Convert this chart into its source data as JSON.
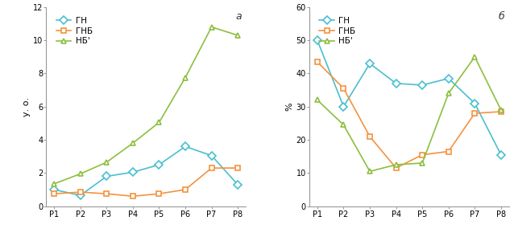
{
  "categories": [
    "P1",
    "P2",
    "P3",
    "P4",
    "P5",
    "P6",
    "P7",
    "P8"
  ],
  "panel_a": {
    "title": "a",
    "ylabel": "у. о.",
    "ylim": [
      0,
      12
    ],
    "yticks": [
      0,
      2,
      4,
      6,
      8,
      10,
      12
    ],
    "GN": [
      1.0,
      0.65,
      1.8,
      2.05,
      2.5,
      3.6,
      3.05,
      1.3
    ],
    "GNB": [
      0.75,
      0.85,
      0.75,
      0.6,
      0.75,
      1.0,
      2.3,
      2.3
    ],
    "NB": [
      1.35,
      1.95,
      2.65,
      3.8,
      5.05,
      7.75,
      10.8,
      10.3
    ]
  },
  "panel_b": {
    "title": "б",
    "ylabel": "%",
    "ylim": [
      0,
      60
    ],
    "yticks": [
      0,
      10,
      20,
      30,
      40,
      50,
      60
    ],
    "GN": [
      50.0,
      30.0,
      43.0,
      37.0,
      36.5,
      38.5,
      31.0,
      15.5
    ],
    "GNB": [
      43.5,
      35.5,
      21.0,
      11.5,
      15.5,
      16.5,
      28.0,
      28.5
    ],
    "NB": [
      32.0,
      24.5,
      10.5,
      12.5,
      13.0,
      34.0,
      45.0,
      29.0
    ]
  },
  "legend_labels": [
    "ГН",
    "ГНБ",
    "НБ'"
  ],
  "color_GN": "#4BBFCF",
  "color_GNB": "#F5923E",
  "color_NB": "#8CBF3F",
  "marker_GN": "D",
  "marker_GNB": "s",
  "marker_NB": "^",
  "markersize": 5,
  "linewidth": 1.2,
  "tick_fontsize": 7,
  "legend_fontsize": 7.5,
  "ylabel_fontsize": 8
}
